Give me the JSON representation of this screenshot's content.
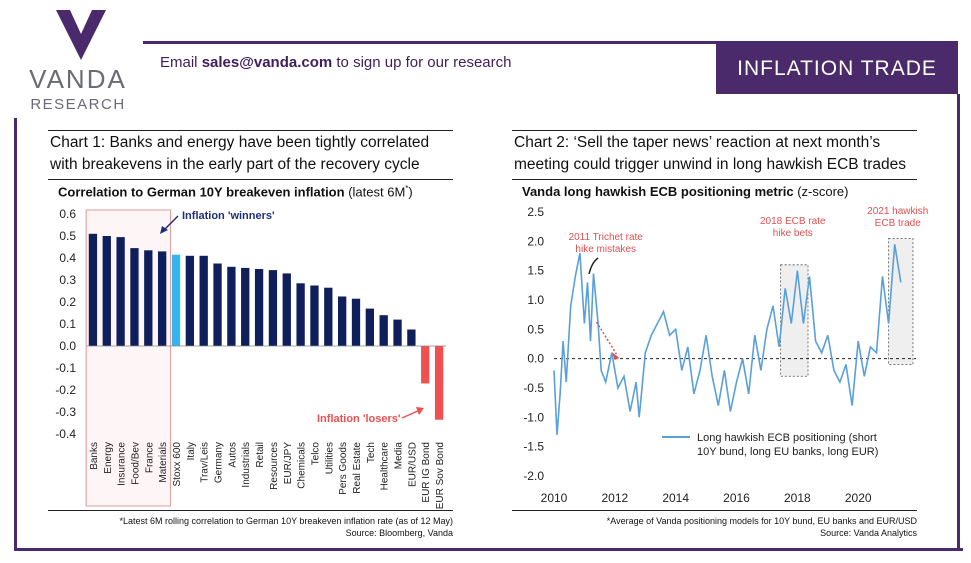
{
  "brand": {
    "name": "VANDA",
    "sub": "RESEARCH"
  },
  "header": {
    "email_prefix": "Email ",
    "email": "sales@vanda.com",
    "email_suffix": " to sign up for our research",
    "banner": "INFLATION TRADE"
  },
  "chart1": {
    "title": "Chart 1: Banks and energy have been tightly correlated with breakevens in the early part of the recovery cycle",
    "subtitle_bold": "Correlation to German 10Y breakeven inflation",
    "subtitle_rest": "(latest 6M",
    "subtitle_sup": "*",
    "subtitle_end": ")",
    "annotation_winners": "Inflation 'winners'",
    "annotation_losers": "Inflation 'losers'",
    "footnote1": "*Latest 6M rolling correlation to German 10Y breakeven inflation rate (as of 12 May)",
    "footnote2": "Source: Bloomberg, Vanda"
  },
  "chart2": {
    "title": "Chart 2: ‘Sell the taper news’ reaction at next month’s meeting could trigger unwind in long hawkish ECB trades",
    "subtitle_bold": "Vanda long hawkish ECB positioning metric",
    "subtitle_rest": "(z-score)",
    "ann_2011": [
      "2011 Trichet rate",
      "hike mistakes"
    ],
    "ann_2018": [
      "2018 ECB rate",
      "hike bets"
    ],
    "ann_2021": [
      "2021 hawkish",
      "ECB trade"
    ],
    "legend": [
      "Long hawkish ECB positioning (short",
      "10Y bund, long EU banks, long EUR)"
    ],
    "footnote1": "*Average of Vanda positioning models for 10Y bund, EU banks and EUR/USD",
    "footnote2": "Source: Vanda Analytics"
  },
  "chart_data": [
    {
      "type": "bar",
      "categories": [
        "Banks",
        "Energy",
        "Insurance",
        "Food/Bev",
        "France",
        "Materials",
        "Stoxx 600",
        "Italy",
        "Trav/Leis",
        "Germany",
        "Autos",
        "Industrials",
        "Retail",
        "Resources",
        "EUR/JPY",
        "Chemicals",
        "Telco",
        "Utilities",
        "Pers Goods",
        "Real Estate",
        "Tech",
        "Healthcare",
        "Media",
        "EUR/USD",
        "EUR IG Bond",
        "EUR Sov Bond"
      ],
      "values": [
        0.51,
        0.5,
        0.495,
        0.445,
        0.435,
        0.43,
        0.415,
        0.41,
        0.41,
        0.375,
        0.36,
        0.355,
        0.35,
        0.345,
        0.33,
        0.285,
        0.275,
        0.265,
        0.225,
        0.215,
        0.17,
        0.14,
        0.12,
        0.075,
        -0.17,
        -0.335
      ],
      "colors": {
        "positive": "#0f1f5c",
        "benchmark": "#33b5f0",
        "negative": "#f05050"
      },
      "ylim": [
        -0.4,
        0.6
      ],
      "yticks": [
        "0.6",
        "0.5",
        "0.4",
        "0.3",
        "0.2",
        "0.1",
        "0.0",
        "-0.1",
        "-0.2",
        "-0.3",
        "-0.4"
      ]
    },
    {
      "type": "line",
      "series": [
        {
          "name": "Long hawkish ECB positioning (short 10Y bund, long EU banks, long EUR)",
          "x": [
            2010.0,
            2010.1,
            2010.2,
            2010.3,
            2010.4,
            2010.55,
            2010.7,
            2010.85,
            2011.0,
            2011.1,
            2011.2,
            2011.3,
            2011.45,
            2011.55,
            2011.7,
            2011.9,
            2012.1,
            2012.3,
            2012.5,
            2012.7,
            2012.8,
            2013.0,
            2013.2,
            2013.4,
            2013.6,
            2013.8,
            2014.0,
            2014.2,
            2014.4,
            2014.6,
            2014.8,
            2015.0,
            2015.2,
            2015.4,
            2015.6,
            2015.8,
            2016.0,
            2016.2,
            2016.4,
            2016.6,
            2016.8,
            2017.0,
            2017.2,
            2017.4,
            2017.6,
            2017.8,
            2018.0,
            2018.2,
            2018.4,
            2018.6,
            2018.8,
            2019.0,
            2019.2,
            2019.4,
            2019.6,
            2019.8,
            2020.0,
            2020.2,
            2020.4,
            2020.6,
            2020.8,
            2021.0,
            2021.2,
            2021.4
          ],
          "y": [
            -0.2,
            -1.3,
            -0.6,
            0.3,
            -0.4,
            0.9,
            1.4,
            1.8,
            0.6,
            1.3,
            0.3,
            1.45,
            0.6,
            -0.2,
            -0.4,
            0.1,
            -0.5,
            -0.3,
            -0.9,
            -0.4,
            -1.0,
            0.1,
            0.4,
            0.6,
            0.8,
            0.4,
            0.5,
            -0.2,
            0.2,
            -0.6,
            -0.2,
            0.4,
            -0.3,
            -0.8,
            -0.2,
            -0.9,
            -0.4,
            0.0,
            -0.6,
            0.4,
            -0.2,
            0.5,
            0.9,
            0.2,
            1.2,
            0.6,
            1.5,
            0.6,
            1.4,
            0.3,
            0.1,
            0.4,
            -0.2,
            -0.4,
            -0.1,
            -0.8,
            0.3,
            -0.3,
            0.2,
            0.1,
            1.4,
            0.6,
            1.95,
            1.3
          ]
        }
      ],
      "xticks": [
        "2010",
        "2012",
        "2014",
        "2016",
        "2018",
        "2020"
      ],
      "yticks": [
        "2.5",
        "2.0",
        "1.5",
        "1.0",
        "0.5",
        "0.0",
        "-0.5",
        "-1.0",
        "-1.5",
        "-2.0"
      ],
      "ylim": [
        -2.0,
        2.5
      ],
      "xlim": [
        2010,
        2021.9
      ],
      "line_color": "#5aa0d8"
    }
  ]
}
